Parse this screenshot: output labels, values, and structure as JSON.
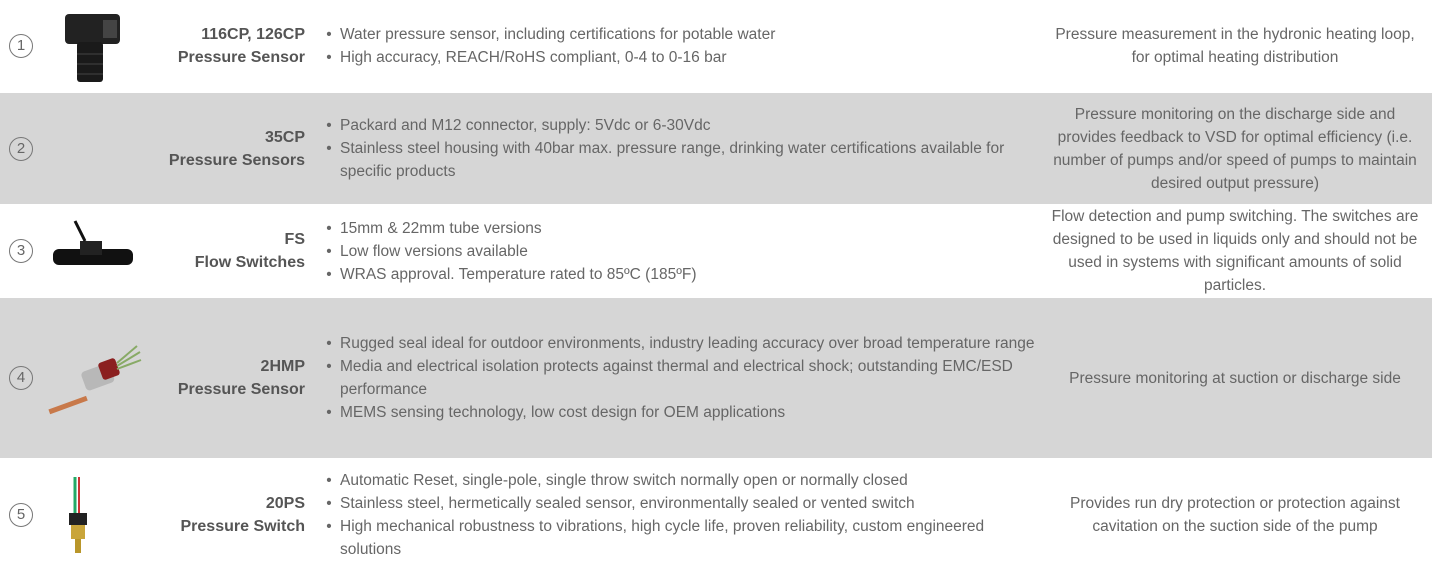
{
  "rows": [
    {
      "number": "1",
      "model": "116CP, 126CP",
      "name": "Pressure Sensor",
      "features": [
        "Water pressure sensor, including certifications for potable water",
        "High accuracy, REACH/RoHS compliant, 0-4 to 0-16 bar"
      ],
      "application": "Pressure measurement in the hydronic heating loop, for optimal heating distribution"
    },
    {
      "number": "2",
      "model": "35CP",
      "name": "Pressure Sensors",
      "features": [
        "Packard and M12 connector, supply: 5Vdc or 6-30Vdc",
        "Stainless steel housing with 40bar max. pressure range, drinking water certifications available for specific products"
      ],
      "application": "Pressure monitoring on the discharge side and provides feedback to VSD for optimal efficiency (i.e. number of pumps and/or speed of pumps to maintain desired output pressure)"
    },
    {
      "number": "3",
      "model": "FS",
      "name": "Flow Switches",
      "features": [
        "15mm & 22mm tube versions",
        "Low flow versions available",
        "WRAS approval. Temperature rated to 85ºC (185ºF)"
      ],
      "application": "Flow detection and pump switching. The switches are designed to be used in liquids only and should not be used in systems with significant amounts of solid particles."
    },
    {
      "number": "4",
      "model": "2HMP",
      "name": "Pressure Sensor",
      "features": [
        "Rugged seal ideal for outdoor environments, industry leading accuracy over broad temperature range",
        "Media and electrical isolation protects against thermal and electrical shock; outstanding EMC/ESD performance",
        "MEMS sensing technology, low cost design for OEM applications"
      ],
      "application": "Pressure monitoring at suction or discharge side"
    },
    {
      "number": "5",
      "model": "20PS",
      "name": "Pressure Switch",
      "features": [
        "Automatic Reset, single-pole, single throw switch normally open or normally closed",
        "Stainless steel, hermetically sealed sensor, environmentally sealed or vented switch",
        "High mechanical robustness to vibrations, high cycle life, proven reliability, custom engineered solutions"
      ],
      "application": "Provides run dry protection or protection against cavitation on the suction side of the pump"
    }
  ]
}
